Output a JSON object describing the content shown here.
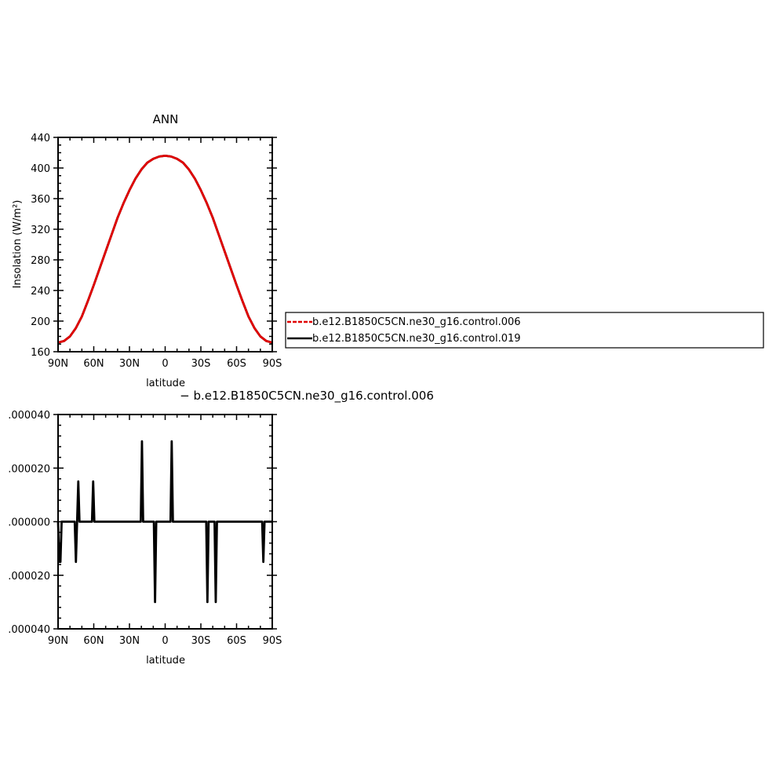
{
  "chart_data": [
    {
      "type": "line",
      "title": "ANN",
      "xlabel": "latitude",
      "ylabel": "Insolation  (W/m²)",
      "xlim": [
        -90,
        90
      ],
      "ylim": [
        160,
        440
      ],
      "x_ticks": [
        {
          "value": -90,
          "label": "90N"
        },
        {
          "value": -60,
          "label": "60N"
        },
        {
          "value": -30,
          "label": "30N"
        },
        {
          "value": 0,
          "label": "0"
        },
        {
          "value": 30,
          "label": "30S"
        },
        {
          "value": 60,
          "label": "60S"
        },
        {
          "value": 90,
          "label": "90S"
        }
      ],
      "y_ticks": [
        {
          "value": 160,
          "label": "160"
        },
        {
          "value": 200,
          "label": "200"
        },
        {
          "value": 240,
          "label": "240"
        },
        {
          "value": 280,
          "label": "280"
        },
        {
          "value": 320,
          "label": "320"
        },
        {
          "value": 360,
          "label": "360"
        },
        {
          "value": 400,
          "label": "400"
        },
        {
          "value": 440,
          "label": "440"
        }
      ],
      "x": [
        -90,
        -85,
        -80,
        -75,
        -70,
        -65,
        -60,
        -55,
        -50,
        -45,
        -40,
        -35,
        -30,
        -25,
        -20,
        -15,
        -10,
        -5,
        0,
        5,
        10,
        15,
        20,
        25,
        30,
        35,
        40,
        45,
        50,
        55,
        60,
        65,
        70,
        75,
        80,
        85,
        90
      ],
      "series": [
        {
          "name": "b.e12.B1850C5CN.ne30_g16.control.006",
          "color": "#e00000",
          "dash": true,
          "values": [
            172,
            174,
            180,
            191,
            206,
            226,
            247,
            269,
            291,
            313,
            335,
            354,
            371,
            386,
            398,
            407,
            412,
            415,
            416,
            415,
            412,
            407,
            398,
            386,
            371,
            354,
            335,
            313,
            291,
            269,
            247,
            226,
            206,
            191,
            180,
            174,
            172
          ]
        },
        {
          "name": "b.e12.B1850C5CN.ne30_g16.control.019",
          "color": "#000000",
          "dash": false,
          "values": [
            172,
            174,
            180,
            191,
            206,
            226,
            247,
            269,
            291,
            313,
            335,
            354,
            371,
            386,
            398,
            407,
            412,
            415,
            416,
            415,
            412,
            407,
            398,
            386,
            371,
            354,
            335,
            313,
            291,
            269,
            247,
            226,
            206,
            191,
            180,
            174,
            172
          ]
        }
      ],
      "legend": "right"
    },
    {
      "type": "line",
      "title": "− b.e12.B1850C5CN.ne30_g16.control.006",
      "xlabel": "latitude",
      "ylabel": "",
      "xlim": [
        -90,
        90
      ],
      "ylim": [
        -4e-05,
        4e-05
      ],
      "x_ticks": [
        {
          "value": -90,
          "label": "90N"
        },
        {
          "value": -60,
          "label": "60N"
        },
        {
          "value": -30,
          "label": "30N"
        },
        {
          "value": 0,
          "label": "0"
        },
        {
          "value": 30,
          "label": "30S"
        },
        {
          "value": 60,
          "label": "60S"
        },
        {
          "value": 90,
          "label": "90S"
        }
      ],
      "y_ticks": [
        {
          "value": 4e-05,
          "label": ".000040"
        },
        {
          "value": 2e-05,
          "label": ".000020"
        },
        {
          "value": 0,
          "label": ".000000"
        },
        {
          "value": -2e-05,
          "label": ".000020"
        },
        {
          "value": -4e-05,
          "label": ".000040"
        }
      ],
      "x": [
        -90,
        -89,
        -88,
        -87,
        -86,
        -85,
        -76,
        -75,
        -74,
        -73,
        -72,
        -61.5,
        -60.5,
        -59.5,
        -20.5,
        -19.5,
        -18.5,
        -9.5,
        -8.5,
        -7.5,
        4.5,
        5.5,
        6.5,
        34.5,
        35.5,
        36.5,
        41.5,
        42.5,
        43.5,
        81.5,
        82.5,
        83.5,
        90
      ],
      "series": [
        {
          "name": "",
          "color": "#000000",
          "values": [
            0,
            -1.5e-05,
            -1.5e-05,
            0,
            0,
            0,
            0,
            -1.5e-05,
            0,
            1.5e-05,
            0,
            0,
            1.5e-05,
            0,
            0,
            3e-05,
            0,
            0,
            -3e-05,
            0,
            0,
            3e-05,
            0,
            0,
            -3e-05,
            0,
            0,
            -3e-05,
            0,
            0,
            -1.5e-05,
            0,
            0
          ]
        }
      ]
    }
  ]
}
